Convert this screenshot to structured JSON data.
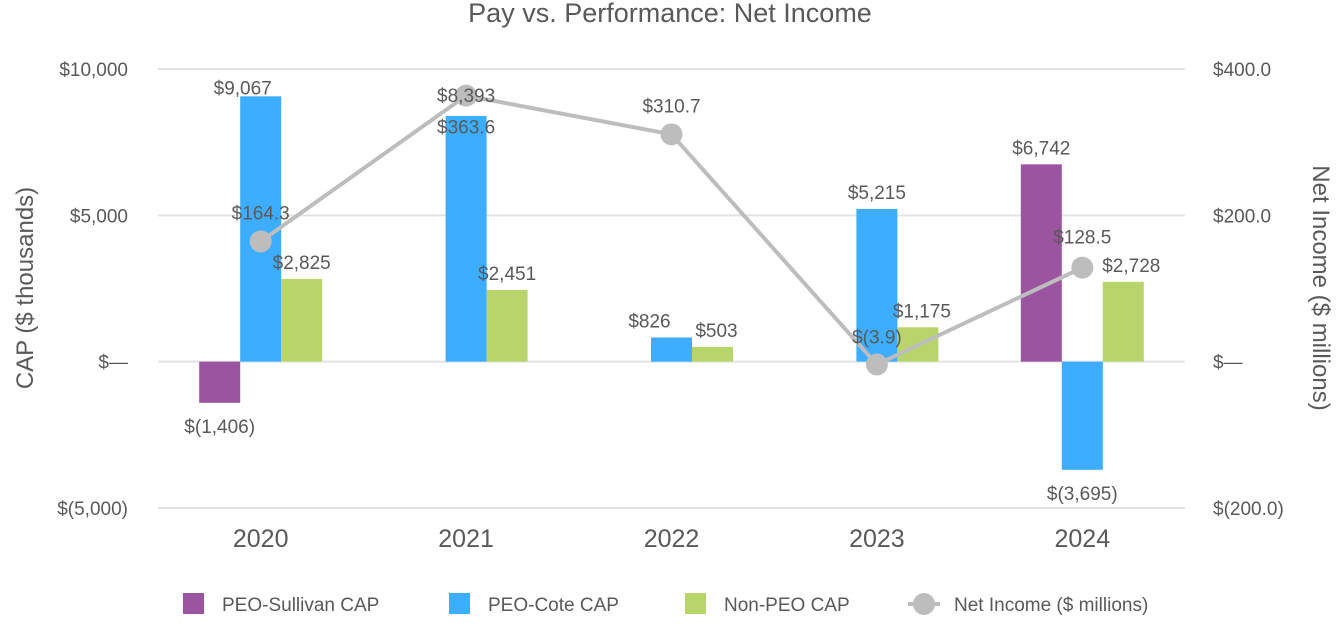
{
  "chart_data": {
    "type": "bar",
    "title": "Pay vs. Performance: Net Income",
    "categories": [
      "2020",
      "2021",
      "2022",
      "2023",
      "2024"
    ],
    "ylabel": "CAP ($ thousands)",
    "y2label": "Net Income ($ millions)",
    "ylim": [
      -5000,
      10000
    ],
    "y2lim": [
      -200,
      400
    ],
    "yticks": [
      {
        "value": 10000,
        "label": "$10,000"
      },
      {
        "value": 5000,
        "label": "$5,000"
      },
      {
        "value": 0,
        "label": "$—"
      },
      {
        "value": -5000,
        "label": "$(5,000)"
      }
    ],
    "y2ticks": [
      {
        "value": 400,
        "label": "$400.0"
      },
      {
        "value": 200,
        "label": "$200.0"
      },
      {
        "value": 0,
        "label": "$—"
      },
      {
        "value": -200,
        "label": "$(200.0)"
      }
    ],
    "grid": true,
    "legend": "bottom",
    "series": [
      {
        "name": "PEO-Sullivan CAP",
        "kind": "bar",
        "axis": "left",
        "color": "#9b54a0",
        "values": [
          -1406,
          null,
          null,
          null,
          6742
        ],
        "labels": [
          "$(1,406)",
          "",
          "",
          "",
          "$6,742"
        ]
      },
      {
        "name": "PEO-Cote CAP",
        "kind": "bar",
        "axis": "left",
        "color": "#3daeff",
        "values": [
          9067,
          8393,
          826,
          5215,
          -3695
        ],
        "labels": [
          "$9,067",
          "$8,393",
          "$826",
          "$5,215",
          "$(3,695)"
        ]
      },
      {
        "name": "Non-PEO CAP",
        "kind": "bar",
        "axis": "left",
        "color": "#b8d56c",
        "values": [
          2825,
          2451,
          503,
          1175,
          2728
        ],
        "labels": [
          "$2,825",
          "$2,451",
          "$503",
          "$1,175",
          "$2,728"
        ]
      },
      {
        "name": "Net Income ($ millions)",
        "kind": "line",
        "axis": "right",
        "color": "#bdbdbd",
        "values": [
          164.3,
          363.6,
          310.7,
          -3.9,
          128.5
        ],
        "labels": [
          "$164.3",
          "$363.6",
          "$310.7",
          "$(3.9)",
          "$128.5"
        ]
      }
    ]
  }
}
